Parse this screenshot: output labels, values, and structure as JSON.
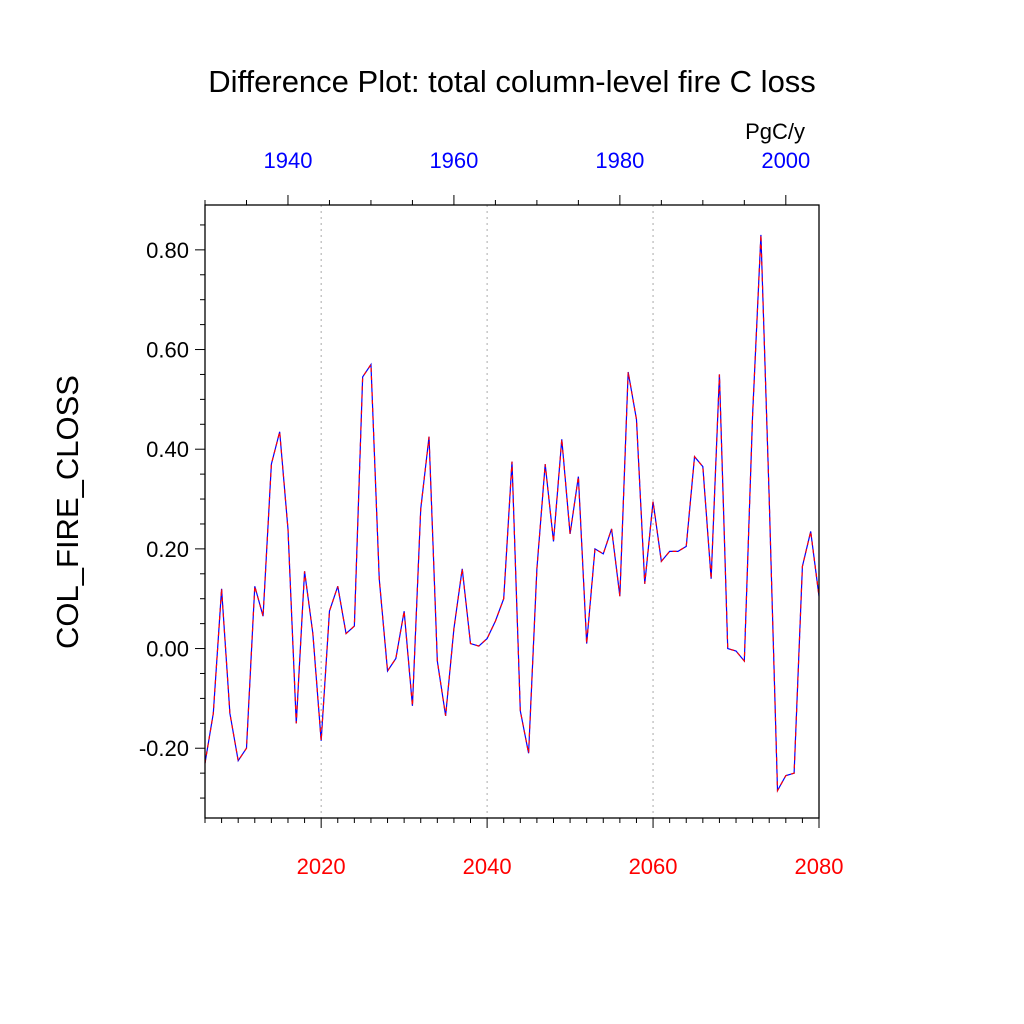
{
  "chart_data": {
    "type": "line",
    "title": "Difference Plot: total column-level fire C loss",
    "units": "PgC/y",
    "ylabel": "COL_FIRE_CLOSS",
    "xlabel": "",
    "ylim": [
      -0.34,
      0.89
    ],
    "xlim": [
      2006,
      2080
    ],
    "x_top_lim": [
      1930,
      2004
    ],
    "yticks": [
      -0.2,
      0.0,
      0.2,
      0.4,
      0.6,
      0.8
    ],
    "ytick_labels": [
      "-0.20",
      "0.00",
      "0.20",
      "0.40",
      "0.60",
      "0.80"
    ],
    "xticks_bottom": [
      2020,
      2040,
      2060,
      2080
    ],
    "xticks_bottom_labels": [
      "2020",
      "2040",
      "2060",
      "2080"
    ],
    "xticks_top": [
      1940,
      1960,
      1980,
      2000
    ],
    "xticks_top_labels": [
      "1940",
      "1960",
      "1980",
      "2000"
    ],
    "grid": "vertical dotted at major bottom ticks",
    "colors": {
      "series_primary": "#0000ff",
      "series_overlay": "#ff0000",
      "bottom_axis_labels": "#ff0000",
      "top_axis_labels": "#0000ff",
      "grid": "#aaaaaa"
    },
    "x": [
      2006,
      2007,
      2008,
      2009,
      2010,
      2011,
      2012,
      2013,
      2014,
      2015,
      2016,
      2017,
      2018,
      2019,
      2020,
      2021,
      2022,
      2023,
      2024,
      2025,
      2026,
      2027,
      2028,
      2029,
      2030,
      2031,
      2032,
      2033,
      2034,
      2035,
      2036,
      2037,
      2038,
      2039,
      2040,
      2041,
      2042,
      2043,
      2044,
      2045,
      2046,
      2047,
      2048,
      2049,
      2050,
      2051,
      2052,
      2053,
      2054,
      2055,
      2056,
      2057,
      2058,
      2059,
      2060,
      2061,
      2062,
      2063,
      2064,
      2065,
      2066,
      2067,
      2068,
      2069,
      2070,
      2071,
      2072,
      2073,
      2074,
      2075,
      2076,
      2077,
      2078,
      2079,
      2080
    ],
    "series": [
      {
        "values": [
          -0.23,
          -0.13,
          0.12,
          -0.13,
          -0.225,
          -0.2,
          0.125,
          0.065,
          0.37,
          0.435,
          0.24,
          -0.15,
          0.155,
          0.03,
          -0.185,
          0.075,
          0.125,
          0.03,
          0.045,
          0.545,
          0.57,
          0.14,
          -0.045,
          -0.02,
          0.075,
          -0.115,
          0.28,
          0.425,
          -0.025,
          -0.135,
          0.04,
          0.16,
          0.01,
          0.005,
          0.02,
          0.055,
          0.1,
          0.375,
          -0.125,
          -0.21,
          0.16,
          0.37,
          0.215,
          0.42,
          0.23,
          0.345,
          0.01,
          0.2,
          0.19,
          0.24,
          0.105,
          0.555,
          0.46,
          0.13,
          0.295,
          0.175,
          0.195,
          0.195,
          0.205,
          0.385,
          0.365,
          0.14,
          0.55,
          0.0,
          -0.005,
          -0.025,
          0.47,
          0.83,
          0.3,
          -0.285,
          -0.255,
          -0.25,
          0.165,
          0.235,
          0.105
        ]
      }
    ]
  }
}
